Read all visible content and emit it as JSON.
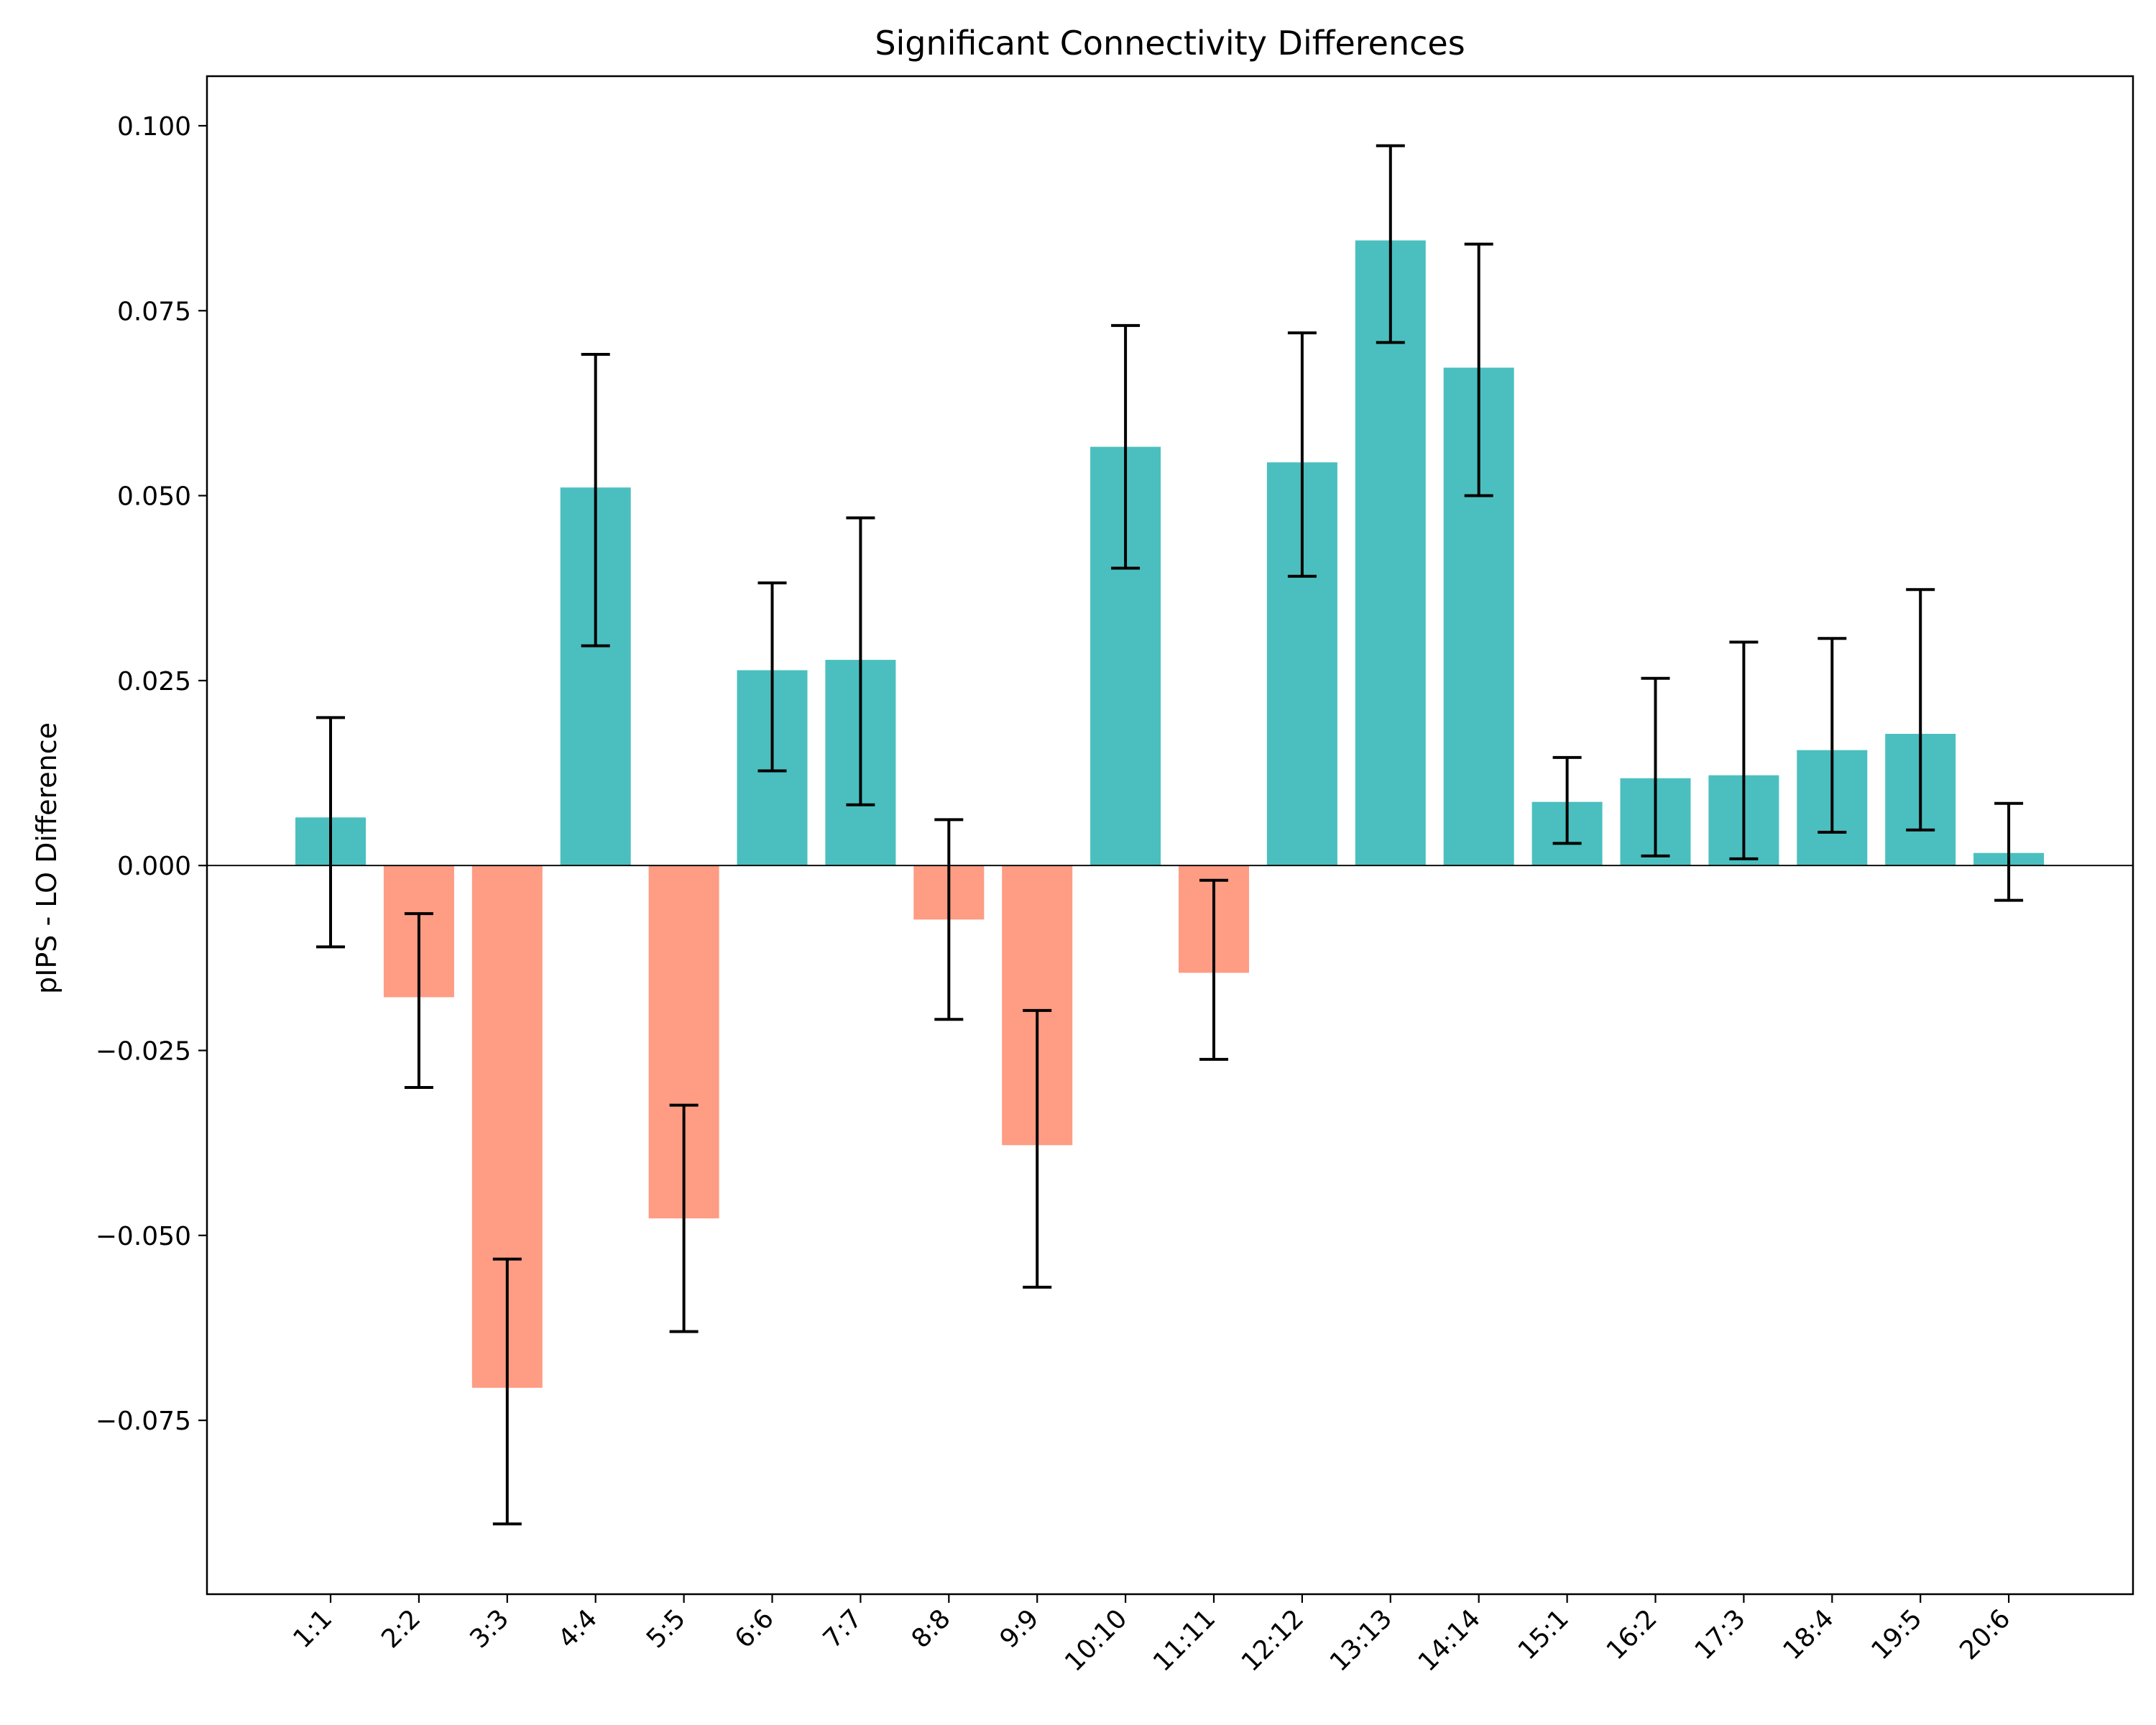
{
  "chart_data": {
    "type": "bar",
    "title": "Significant Connectivity Differences",
    "xlabel": "",
    "ylabel": "pIPS - LO Difference",
    "categories": [
      "1:1",
      "2:2",
      "3:3",
      "4:4",
      "5:5",
      "6:6",
      "7:7",
      "8:8",
      "9:9",
      "10:10",
      "11:11",
      "12:12",
      "13:13",
      "14:14",
      "15:1",
      "16:2",
      "17:3",
      "18:4",
      "19:5",
      "20:6"
    ],
    "values": [
      0.0065,
      -0.0178,
      -0.0706,
      0.0511,
      -0.0477,
      0.0264,
      0.0278,
      -0.0073,
      -0.0378,
      0.0566,
      -0.0145,
      0.0545,
      0.0845,
      0.0673,
      0.0086,
      0.0118,
      0.0122,
      0.0156,
      0.0178,
      0.0017
    ],
    "error_low": [
      -0.011,
      -0.03,
      -0.089,
      0.0297,
      -0.063,
      0.0128,
      0.0082,
      -0.0208,
      -0.057,
      0.0402,
      -0.0262,
      0.0391,
      0.0707,
      0.05,
      0.003,
      0.0013,
      0.0009,
      0.0045,
      0.0048,
      -0.0047
    ],
    "error_high": [
      0.02,
      -0.0065,
      -0.0532,
      0.0691,
      -0.0324,
      0.0382,
      0.047,
      0.0062,
      -0.0196,
      0.073,
      -0.002,
      0.072,
      0.0973,
      0.084,
      0.0146,
      0.0253,
      0.0302,
      0.0307,
      0.0373,
      0.0084
    ],
    "ylim": [
      -0.0985,
      0.1067
    ],
    "yticks": [
      0.1,
      0.075,
      0.05,
      0.025,
      0.0,
      -0.025,
      -0.05,
      -0.075
    ],
    "ytick_labels": [
      "0.100",
      "0.075",
      "0.050",
      "0.025",
      "0.000",
      "−0.025",
      "−0.050",
      "−0.075"
    ],
    "grid": false,
    "zero_line": true,
    "colors": {
      "positive": "#4bbfbf",
      "negative": "#fe9c84",
      "errorbar": "#000000",
      "axis": "#000000"
    }
  }
}
